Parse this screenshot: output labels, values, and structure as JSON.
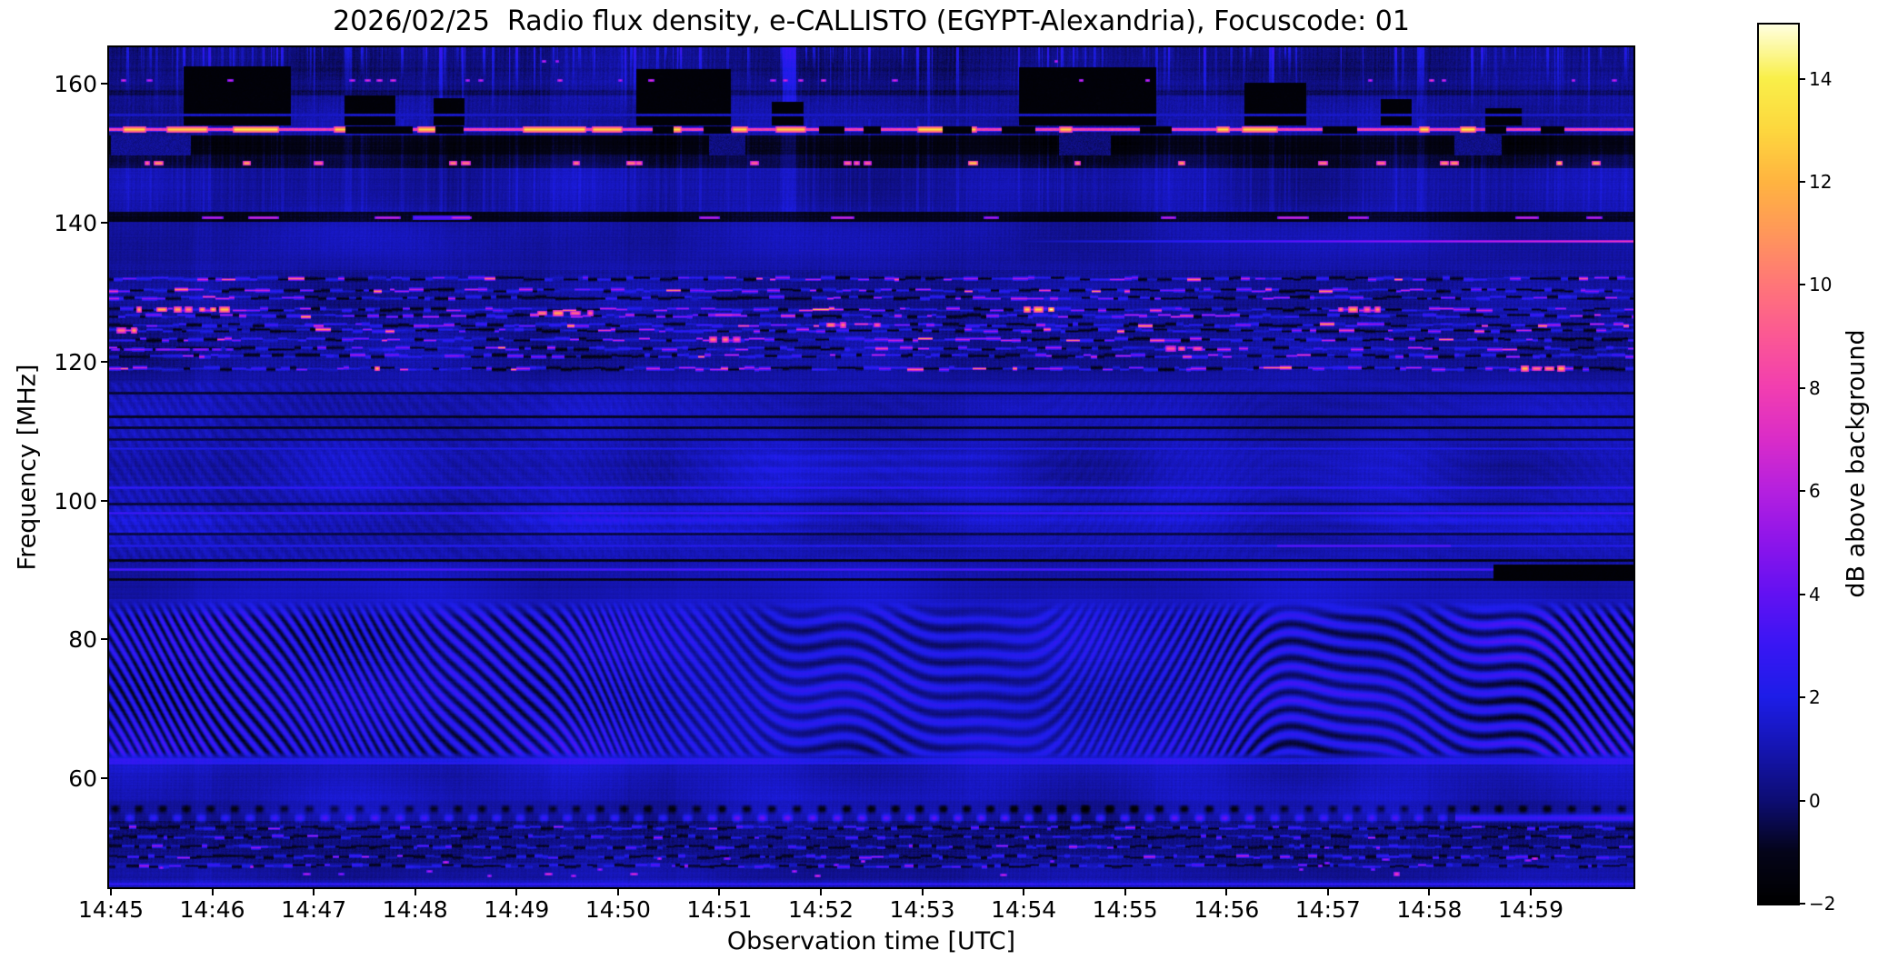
{
  "title": "2026/02/25  Radio flux density, e-CALLISTO (EGYPT-Alexandria), Focuscode: 01",
  "x_axis": {
    "label": "Observation time [UTC]",
    "ticks": [
      "14:45",
      "14:46",
      "14:47",
      "14:48",
      "14:49",
      "14:50",
      "14:51",
      "14:52",
      "14:53",
      "14:54",
      "14:55",
      "14:56",
      "14:57",
      "14:58",
      "14:59"
    ]
  },
  "y_axis": {
    "label": "Frequency [MHz]",
    "tick_values": [
      160,
      140,
      120,
      100,
      80,
      60
    ],
    "tick_labels": [
      "160",
      "140",
      "120",
      "100",
      "80",
      "60"
    ]
  },
  "colorbar": {
    "label": "dB above background",
    "tick_values": [
      14,
      12,
      10,
      8,
      6,
      4,
      2,
      0,
      -2
    ],
    "tick_labels": [
      "14",
      "12",
      "10",
      "8",
      "6",
      "4",
      "2",
      "0",
      "−2"
    ],
    "value_min": -2,
    "value_max": 15.05,
    "colormap": [
      [
        -2,
        "#000000"
      ],
      [
        -1,
        "#04041a"
      ],
      [
        0,
        "#0d0d74"
      ],
      [
        1,
        "#1515b2"
      ],
      [
        2,
        "#1d1de8"
      ],
      [
        3,
        "#3916f4"
      ],
      [
        4,
        "#6311f2"
      ],
      [
        5,
        "#8d15ea"
      ],
      [
        6,
        "#b520df"
      ],
      [
        7,
        "#da2cc8"
      ],
      [
        8,
        "#f23eb0"
      ],
      [
        9,
        "#fb5894"
      ],
      [
        10,
        "#ff7678"
      ],
      [
        11,
        "#ff975a"
      ],
      [
        12,
        "#ffb440"
      ],
      [
        13,
        "#fdd73e"
      ],
      [
        14,
        "#f9ef49"
      ],
      [
        15.05,
        "#ffffe0"
      ]
    ]
  },
  "chart_data": {
    "type": "heatmap",
    "title": "2026/02/25  Radio flux density, e-CALLISTO (EGYPT-Alexandria), Focuscode: 01",
    "xlabel": "Observation time [UTC]",
    "ylabel": "Frequency [MHz]",
    "x_range": [
      "14:45",
      "15:00"
    ],
    "time_span_min": 15.04,
    "y_range_mhz": [
      44.3,
      165.3
    ],
    "value_range_db": [
      -2,
      15.05
    ],
    "legend_position": "right-colorbar",
    "grid": false,
    "features": {
      "top_band": {
        "f_range": [
          155,
          165.3
        ],
        "desc": "dark band with vertical blue interference streaks and black dropout patches",
        "dot_row_mhz": 160.6,
        "dot_minutes": [
          0.1,
          0.35,
          1.15,
          2.35,
          2.5,
          2.62,
          2.75,
          3.5,
          3.62,
          4.4,
          5.0,
          5.3,
          6.5,
          6.62,
          6.78,
          7.0,
          7.7,
          9.55,
          10.2,
          12.4,
          13.0,
          13.12,
          14.4,
          14.8
        ],
        "upper_dot_mhz": 163.4,
        "upper_dot_minutes": [
          4.25,
          4.38,
          9.3
        ],
        "faint_line_mhz": 155.55,
        "big_streaks": [
          [
            2.3,
            0.07,
            2.0,
            60
          ],
          [
            6.62,
            0.13,
            2.8,
            105
          ],
          [
            12.88,
            0.06,
            2.2,
            70
          ]
        ]
      },
      "carrier_line": {
        "freq_mhz": 153.45,
        "db": 8,
        "blob_db": 12.8,
        "blobs_min": [
          [
            0.12,
            0.22
          ],
          [
            0.55,
            0.4
          ],
          [
            1.2,
            0.45
          ],
          [
            2.2,
            0.12
          ],
          [
            3.02,
            0.18
          ],
          [
            4.06,
            0.62
          ],
          [
            4.74,
            0.3
          ],
          [
            5.52,
            0.1
          ],
          [
            6.12,
            0.15
          ],
          [
            6.55,
            0.3
          ],
          [
            7.95,
            0.3
          ],
          [
            8.33,
            0.2
          ],
          [
            9.35,
            0.12
          ],
          [
            10.9,
            0.12
          ],
          [
            11.15,
            0.35
          ],
          [
            12.9,
            0.1
          ],
          [
            13.3,
            0.15
          ],
          [
            14.2,
            0.1
          ]
        ],
        "gaps_min": [
          [
            2.31,
            0.66
          ],
          [
            3.2,
            0.27
          ],
          [
            5.34,
            0.2
          ],
          [
            5.84,
            0.26
          ],
          [
            6.98,
            0.24
          ],
          [
            7.42,
            0.16
          ],
          [
            8.2,
            0.28
          ],
          [
            8.78,
            0.33
          ],
          [
            10.15,
            0.3
          ],
          [
            11.95,
            0.33
          ],
          [
            13.55,
            0.2
          ],
          [
            14.1,
            0.22
          ]
        ]
      },
      "black_band": {
        "f_range": [
          149.9,
          152.6
        ],
        "blue_patches": [
          [
            0,
            0.78,
            0.5
          ],
          [
            5.9,
            0.35,
            0.2
          ],
          [
            9.35,
            0.5,
            0.1
          ],
          [
            13.25,
            0.45,
            0.3
          ]
        ]
      },
      "dropouts": [
        [
          0.72,
          1.05,
          154.2,
          162.6
        ],
        [
          2.3,
          0.5,
          154.2,
          158.3
        ],
        [
          3.18,
          0.3,
          154.2,
          158.0
        ],
        [
          5.18,
          0.92,
          154.2,
          162.2
        ],
        [
          6.52,
          0.3,
          154.2,
          157.5
        ],
        [
          8.95,
          1.35,
          154.2,
          162.4
        ],
        [
          11.18,
          0.6,
          154.2,
          160.2
        ],
        [
          12.52,
          0.3,
          154.2,
          157.8
        ],
        [
          13.55,
          0.35,
          154.2,
          156.5
        ]
      ],
      "dot_row_149": {
        "freq_mhz": 148.7,
        "db": 11.5,
        "minutes": [
          0.33,
          0.42,
          1.3,
          2.0,
          3.33,
          3.45,
          4.55,
          5.08,
          5.17,
          6.3,
          7.22,
          7.32,
          7.42,
          8.45,
          9.5,
          10.52,
          11.9,
          12.48,
          13.1,
          13.2,
          14.25,
          14.6
        ]
      },
      "dash_row_141": {
        "freq_mhz": 140.8,
        "dashes": [
          [
            0.9,
            0.2,
            6.5
          ],
          [
            1.35,
            0.3,
            7
          ],
          [
            2.6,
            0.25,
            6.8
          ],
          [
            2.98,
            0.55,
            4.2
          ],
          [
            3.35,
            0.2,
            7.2
          ],
          [
            5.8,
            0.2,
            6.5
          ],
          [
            7.1,
            0.22,
            7
          ],
          [
            8.6,
            0.15,
            6
          ],
          [
            10.35,
            0.15,
            6.5
          ],
          [
            11.5,
            0.3,
            7
          ],
          [
            12.2,
            0.2,
            6.5
          ],
          [
            13.85,
            0.22,
            6.8
          ],
          [
            14.55,
            0.15,
            6.5
          ]
        ]
      },
      "rising_line_137": {
        "freq_mhz": 137.45,
        "start_min": 9.0,
        "end_db": 8.2
      },
      "aviation_rows": [
        [
          132.0,
          0.45
        ],
        [
          130.4,
          0.4
        ],
        [
          129.3,
          0.3
        ],
        [
          127.6,
          0.85
        ],
        [
          126.7,
          0.5
        ],
        [
          125.4,
          0.55
        ],
        [
          124.6,
          0.35
        ],
        [
          123.3,
          0.5
        ],
        [
          121.9,
          0.45
        ],
        [
          120.9,
          0.3
        ],
        [
          119.1,
          0.5
        ]
      ],
      "hot_clusters": [
        [
          0.25,
          0.9,
          127.6,
          12
        ],
        [
          9.0,
          0.35,
          127.6,
          14
        ],
        [
          2.38,
          0.26,
          119.1,
          12.5
        ],
        [
          7.05,
          0.5,
          125.4,
          11
        ],
        [
          12.1,
          0.4,
          127.6,
          11.5
        ],
        [
          13.9,
          0.5,
          119.1,
          11.5
        ],
        [
          4.2,
          0.5,
          127.0,
          11
        ],
        [
          5.9,
          0.3,
          123.3,
          10.5
        ],
        [
          10.4,
          0.3,
          121.9,
          10
        ],
        [
          0.05,
          0.18,
          124.6,
          11
        ]
      ],
      "purple_smear": [
        0.0,
        1.2,
        121.8,
        4.5
      ],
      "fm_band": {
        "f_range": [
          88.8,
          117.2
        ],
        "lines": [
          [
            107.5,
            2.1
          ],
          [
            101.9,
            3.0
          ],
          [
            98.2,
            3.3
          ],
          [
            93.6,
            2.4
          ],
          [
            90.1,
            3.7
          ]
        ],
        "line_segment": [
          11.5,
          1.7,
          93.6,
          3.9
        ],
        "dark_rows": [
          [
            115.6,
            -0.8
          ],
          [
            112.1,
            -1.0
          ],
          [
            110.5,
            -0.9
          ],
          [
            108.9,
            -0.5
          ],
          [
            99.5,
            -0.7
          ],
          [
            95.2,
            -0.6
          ],
          [
            91.5,
            -1.1
          ],
          [
            88.7,
            -1.0
          ]
        ],
        "clouds": [
          [
            5.6,
            97.2,
            0.9,
            1.3,
            1.9
          ],
          [
            9.6,
            98.6,
            0.7,
            1.7,
            1.7
          ],
          [
            13.4,
            97.4,
            0.8,
            1.2,
            1.6
          ],
          [
            0.9,
            96.3,
            0.55,
            1.0,
            1.5
          ],
          [
            7.4,
            104.5,
            0.5,
            1.5,
            2.2
          ]
        ]
      },
      "right_black_band": {
        "f_range": [
          88.6,
          90.8
        ],
        "start_min": 13.63
      },
      "fringe_zone": {
        "f_range": [
          62.9,
          85.6
        ],
        "desc": "diagonal moire interference fringes changing slope (chevrons)"
      },
      "boundary_line_62": {
        "freq_mhz": 62.3,
        "db": 2.6
      },
      "dash_band_55": {
        "dark_wave_mhz": 55.55,
        "bright_dash_mhz": 54.25,
        "solid_after_min": 13.25
      },
      "low_speckle_rows": [
        [
          53.0,
          0.5
        ],
        [
          51.6,
          0.5
        ],
        [
          50.2,
          0.55
        ],
        [
          48.8,
          0.5
        ],
        [
          47.5,
          0.45
        ]
      ],
      "low_dots": {
        "f_range": [
          46,
          48.5
        ],
        "db": 6.5,
        "count": 26,
        "special": [
          12.65,
          46.3,
          8.2
        ]
      },
      "bottom_line": {
        "freq_mhz": 44.8,
        "db": 3.0
      }
    }
  }
}
